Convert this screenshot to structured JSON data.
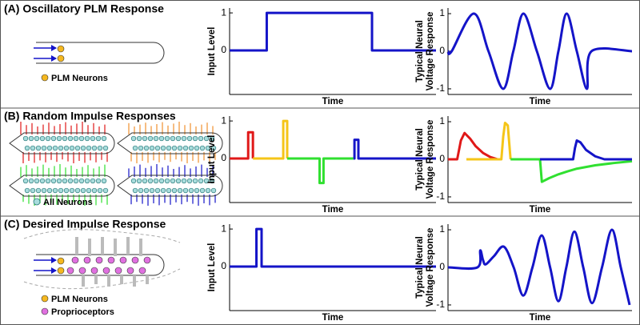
{
  "panels": [
    {
      "title": "(A) Oscillatory PLM Response",
      "legend": [
        "PLM Neurons"
      ]
    },
    {
      "title": "(B) Random Impulse Responses",
      "legend": [
        "All Neurons"
      ]
    },
    {
      "title": "(C) Desired Impulse Response",
      "legend": [
        "PLM Neurons",
        "Proprioceptors"
      ]
    }
  ],
  "chart_data": [
    {
      "type": "line",
      "ylabel": [
        "Input Level"
      ],
      "xlabel": "Time",
      "xlim": [
        0,
        1
      ],
      "ylim": [
        -1.17,
        1.13
      ],
      "yticks": [
        0,
        1
      ],
      "smooth": false,
      "series": [
        {
          "color": "#1414c8",
          "x": [
            0,
            0.18,
            0.18,
            0.69,
            0.69,
            1
          ],
          "values": [
            0,
            0,
            1,
            1,
            0,
            0
          ]
        }
      ]
    },
    {
      "type": "line",
      "ylabel": [
        "Typical Neural",
        "Voltage Response"
      ],
      "xlabel": "Time",
      "xlim": [
        0,
        1
      ],
      "ylim": [
        -1.15,
        1.15
      ],
      "yticks": [
        -1,
        0,
        1
      ],
      "smooth": true,
      "series": [
        {
          "color": "#1414c8",
          "x": [
            0,
            0.02,
            0.14,
            0.22,
            0.3,
            0.355,
            0.41,
            0.483,
            0.555,
            0.6,
            0.645,
            0.7,
            0.755,
            0.78,
            1
          ],
          "values": [
            0,
            0,
            1,
            0,
            -1,
            0,
            1,
            0,
            -1,
            0,
            1,
            0,
            -1,
            0,
            0
          ]
        }
      ]
    },
    {
      "type": "line",
      "ylabel": [
        "Input Level"
      ],
      "xlabel": "Time",
      "xlim": [
        0,
        1
      ],
      "ylim": [
        -1.17,
        1.13
      ],
      "yticks": [
        0,
        1
      ],
      "smooth": false,
      "series": [
        {
          "color": "#e01818",
          "x": [
            0,
            0.09,
            0.09,
            0.113,
            0.113
          ],
          "values": [
            0,
            0,
            0.7,
            0.7,
            0
          ]
        },
        {
          "color": "#f5c518",
          "x": [
            0.113,
            0.26,
            0.26,
            0.279,
            0.279
          ],
          "values": [
            0,
            0,
            1,
            1,
            0
          ]
        },
        {
          "color": "#30e030",
          "x": [
            0.279,
            0.436,
            0.436,
            0.455,
            0.455,
            0.6
          ],
          "values": [
            0,
            0,
            -0.65,
            -0.65,
            0,
            0
          ]
        },
        {
          "color": "#1414c8",
          "x": [
            0.6,
            0.605,
            0.605,
            0.624,
            0.624,
            1
          ],
          "values": [
            0,
            0,
            0.5,
            0.5,
            0,
            0
          ]
        }
      ]
    },
    {
      "type": "line",
      "ylabel": [
        "Typical Neural",
        "Voltage Response"
      ],
      "xlabel": "Time",
      "xlim": [
        0,
        1
      ],
      "ylim": [
        -1.15,
        1.15
      ],
      "yticks": [
        -1,
        0,
        1
      ],
      "smooth": false,
      "series": [
        {
          "color": "#e01818",
          "x": [
            0,
            0.05,
            0.07,
            0.09,
            0.12,
            0.15,
            0.19,
            0.23,
            0.27
          ],
          "values": [
            0,
            0,
            0.5,
            0.7,
            0.55,
            0.35,
            0.17,
            0.06,
            0
          ]
        },
        {
          "color": "#f5c518",
          "x": [
            0.1,
            0.29,
            0.3,
            0.31,
            0.325,
            0.34
          ],
          "values": [
            0,
            0,
            0.6,
            0.97,
            0.9,
            0
          ]
        },
        {
          "color": "#30e030",
          "x": [
            0.34,
            0.5,
            0.51,
            0.55,
            0.6,
            0.65,
            0.7,
            0.8,
            0.9,
            1
          ],
          "values": [
            0,
            0,
            -0.6,
            -0.5,
            -0.4,
            -0.32,
            -0.25,
            -0.16,
            -0.1,
            -0.05
          ]
        },
        {
          "color": "#1414c8",
          "x": [
            0.5,
            0.68,
            0.69,
            0.7,
            0.72,
            0.75,
            0.8,
            0.85,
            1
          ],
          "values": [
            0,
            0,
            0.3,
            0.5,
            0.45,
            0.25,
            0.08,
            0,
            0
          ]
        }
      ]
    },
    {
      "type": "line",
      "ylabel": [
        "Input Level"
      ],
      "xlabel": "Time",
      "xlim": [
        0,
        1
      ],
      "ylim": [
        -1.17,
        1.13
      ],
      "yticks": [
        0,
        1
      ],
      "smooth": false,
      "series": [
        {
          "color": "#1414c8",
          "x": [
            0,
            0.13,
            0.13,
            0.155,
            0.155,
            1
          ],
          "values": [
            0,
            0,
            1,
            1,
            0,
            0
          ]
        }
      ]
    },
    {
      "type": "line",
      "ylabel": [
        "Typical Neural",
        "Voltage Response"
      ],
      "xlabel": "Time",
      "xlim": [
        0,
        1
      ],
      "ylim": [
        -1.15,
        1.15
      ],
      "yticks": [
        -1,
        0,
        1
      ],
      "smooth": true,
      "series": [
        {
          "color": "#1414c8",
          "x": [
            0,
            0.16,
            0.175,
            0.19,
            0.205,
            0.25,
            0.304,
            0.357,
            0.409,
            0.459,
            0.509,
            0.555,
            0.6,
            0.643,
            0.687,
            0.735,
            0.783,
            0.837,
            0.891,
            0.939,
            0.987
          ],
          "values": [
            0,
            0,
            0.45,
            0.2,
            0.08,
            0.3,
            0.55,
            0,
            -0.75,
            0,
            0.85,
            0,
            -0.9,
            0,
            0.95,
            0,
            -0.95,
            0,
            1,
            0,
            -1
          ]
        }
      ]
    }
  ]
}
